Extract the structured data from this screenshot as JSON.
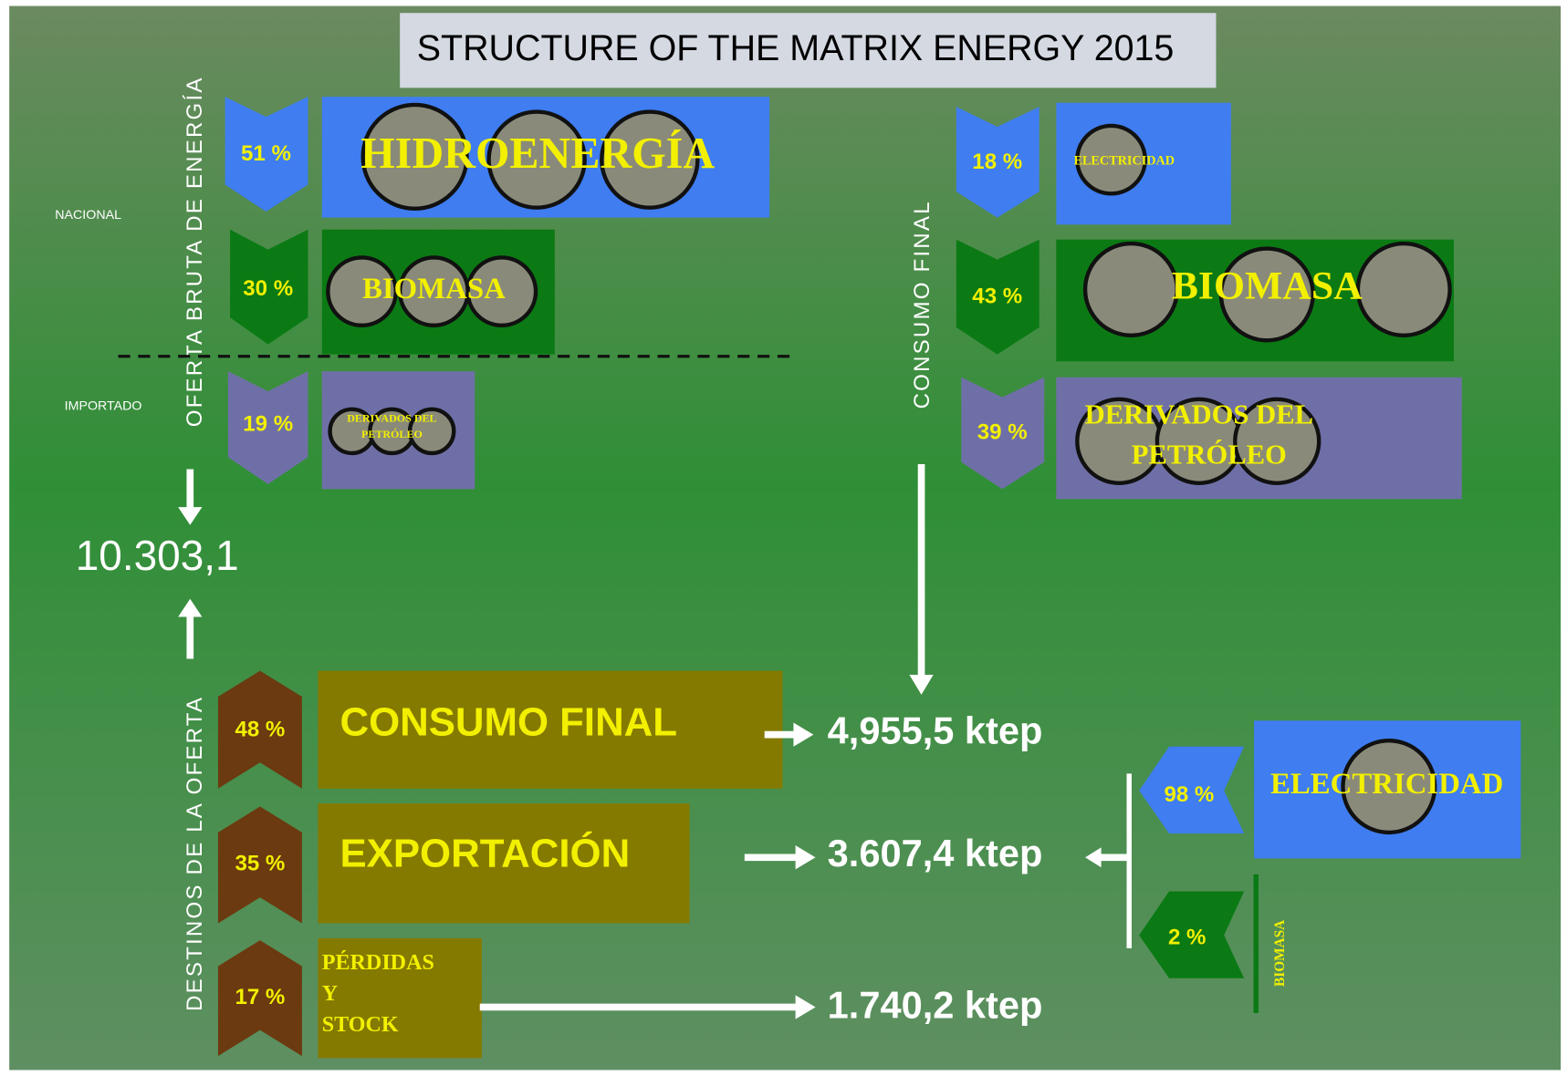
{
  "title": "STRUCTURE OF THE MATRIX ENERGY 2015",
  "supply": {
    "label": "OFERTA BRUTA DE ENERGÍA",
    "nacional": "NACIONAL",
    "importado": "IMPORTADO",
    "items": [
      {
        "percent": "51 %",
        "name": "HIDROENERGÍA"
      },
      {
        "percent": "30 %",
        "name": "BIOMASA"
      },
      {
        "percent": "19 %",
        "name": [
          "DERIVADOS DEL",
          "PETRÓLEO"
        ]
      }
    ],
    "total": "10.303,1"
  },
  "final_consumption": {
    "label": "CONSUMO FINAL",
    "items": [
      {
        "percent": "18 %",
        "name": "ELECTRICIDAD"
      },
      {
        "percent": "43 %",
        "name": "BIOMASA"
      },
      {
        "percent": "39 %",
        "name": [
          "DERIVADOS DEL",
          "PETRÓLEO"
        ]
      }
    ]
  },
  "destinations": {
    "label": "DESTINOS DE LA OFERTA",
    "items": [
      {
        "percent": "48 %",
        "name": "CONSUMO FINAL",
        "amount": "4,955,5 ktep"
      },
      {
        "percent": "35 %",
        "name": "EXPORTACIÓN",
        "amount": "3.607,4 ktep"
      },
      {
        "percent": "17 %",
        "name": [
          "PÉRDIDAS",
          "Y",
          "STOCK"
        ],
        "amount": "1.740,2 ktep"
      }
    ]
  },
  "exports": {
    "items": [
      {
        "percent": "98 %",
        "name": "ELECTRICIDAD"
      },
      {
        "percent": "2 %",
        "name": "BIOMASA"
      }
    ]
  }
}
